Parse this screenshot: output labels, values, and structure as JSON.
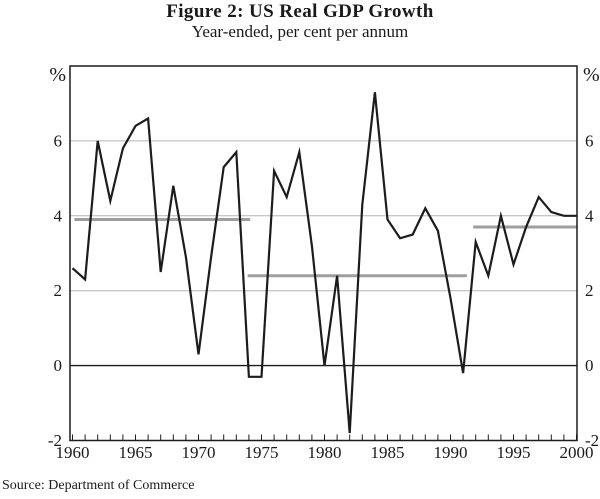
{
  "figure": {
    "title": "Figure 2: US Real GDP Growth",
    "subtitle": "Year-ended, per cent per annum",
    "source": "Source: Department of Commerce"
  },
  "chart_data": {
    "type": "line",
    "title": "Figure 2: US Real GDP Growth",
    "subtitle": "Year-ended, per cent per annum",
    "unit": "%",
    "x": [
      1960,
      1961,
      1962,
      1963,
      1964,
      1965,
      1966,
      1967,
      1968,
      1969,
      1970,
      1971,
      1972,
      1973,
      1974,
      1975,
      1976,
      1977,
      1978,
      1979,
      1980,
      1981,
      1982,
      1983,
      1984,
      1985,
      1986,
      1987,
      1988,
      1989,
      1990,
      1991,
      1992,
      1993,
      1994,
      1995,
      1996,
      1997,
      1998,
      1999,
      2000
    ],
    "series": [
      {
        "name": "US real GDP growth, per cent per annum",
        "values": [
          2.6,
          2.3,
          6.0,
          4.4,
          5.8,
          6.4,
          6.6,
          2.5,
          4.8,
          2.9,
          0.3,
          2.9,
          5.3,
          5.7,
          -0.3,
          -0.3,
          5.2,
          4.5,
          5.7,
          3.2,
          0.0,
          2.4,
          -1.8,
          4.3,
          7.3,
          3.9,
          3.4,
          3.5,
          4.2,
          3.6,
          1.8,
          -0.2,
          3.3,
          2.4,
          4.0,
          2.7,
          3.7,
          4.5,
          4.1,
          4.0,
          4.0
        ]
      }
    ],
    "period_averages": [
      {
        "from": 1960.15,
        "to": 1974.1,
        "value": 3.9
      },
      {
        "from": 1973.9,
        "to": 1991.3,
        "value": 2.4
      },
      {
        "from": 1991.8,
        "to": 2000.0,
        "value": 3.7
      }
    ],
    "xlabel": "",
    "ylabel": "%",
    "ylim": [
      -2,
      8
    ],
    "yticks": [
      -2,
      0,
      2,
      4,
      6
    ],
    "xticks_labeled": [
      1960,
      1965,
      1970,
      1975,
      1980,
      1985,
      1990,
      1995,
      2000
    ],
    "xtick_every_years": 1,
    "grid": "horizontal",
    "gridlines_at": [
      2,
      4,
      6
    ],
    "legend_position": "none",
    "colors": {
      "line": "#1c1c1c",
      "average_line": "#9e9e9e",
      "gridline": "#b5b5b5",
      "zero_line": "#1c1c1c",
      "frame": "#1c1c1c",
      "text": "#1a1a1a",
      "background": "#ffffff"
    }
  }
}
